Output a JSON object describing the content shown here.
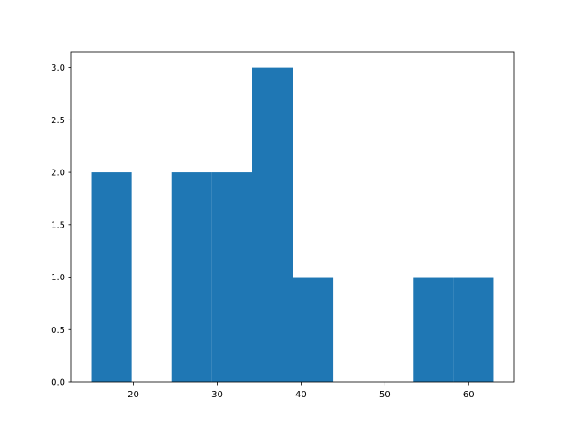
{
  "chart_data": {
    "type": "bar",
    "histogram": true,
    "bins": [
      {
        "x0": 15.0,
        "x1": 19.8,
        "count": 2
      },
      {
        "x0": 19.8,
        "x1": 24.6,
        "count": 0
      },
      {
        "x0": 24.6,
        "x1": 29.4,
        "count": 2
      },
      {
        "x0": 29.4,
        "x1": 34.2,
        "count": 2
      },
      {
        "x0": 34.2,
        "x1": 39.0,
        "count": 3
      },
      {
        "x0": 39.0,
        "x1": 43.8,
        "count": 1
      },
      {
        "x0": 43.8,
        "x1": 48.6,
        "count": 0
      },
      {
        "x0": 48.6,
        "x1": 53.4,
        "count": 0
      },
      {
        "x0": 53.4,
        "x1": 58.2,
        "count": 1
      },
      {
        "x0": 58.2,
        "x1": 63.0,
        "count": 1
      }
    ],
    "xlim": [
      12.6,
      65.4
    ],
    "ylim": [
      0,
      3.15
    ],
    "x_ticks": [
      20,
      30,
      40,
      50,
      60
    ],
    "x_tick_labels": [
      "20",
      "30",
      "40",
      "50",
      "60"
    ],
    "y_ticks": [
      0,
      0.5,
      1.0,
      1.5,
      2.0,
      2.5,
      3.0
    ],
    "y_tick_labels": [
      "0.0",
      "0.5",
      "1.0",
      "1.5",
      "2.0",
      "2.5",
      "3.0"
    ],
    "title": "",
    "xlabel": "",
    "ylabel": "",
    "grid": false,
    "bar_color": "#1f77b4"
  }
}
